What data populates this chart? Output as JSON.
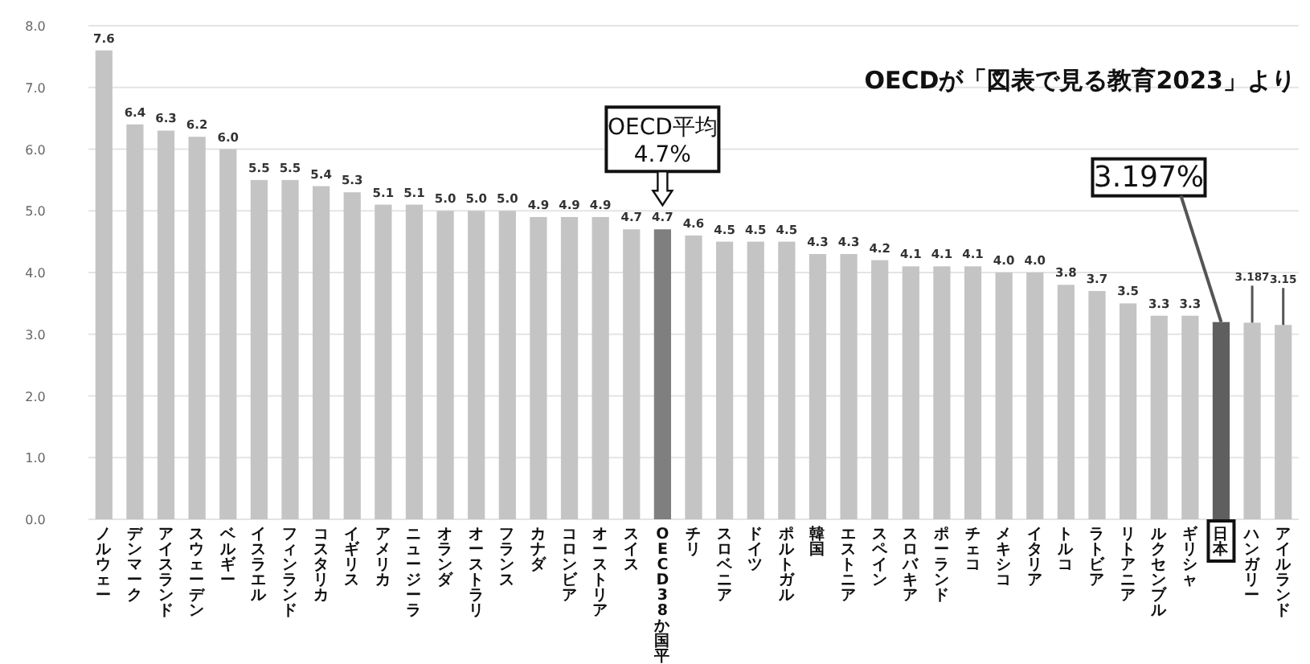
{
  "chart_data": {
    "type": "bar",
    "categories": [
      "ノルウェー",
      "デンマーク",
      "アイスランド",
      "スウェーデン",
      "ベルギー",
      "イスラエル",
      "フィンランド",
      "コスタリカ",
      "イギリス",
      "アメリカ",
      "ニュージーラ",
      "オランダ",
      "オーストラリ",
      "フランス",
      "カナダ",
      "コロンビア",
      "オーストリア",
      "スイス",
      "OECD38か国平",
      "チリ",
      "スロベニア",
      "ドイツ",
      "ポルトガル",
      "韓国",
      "エストニア",
      "スペイン",
      "スロバキア",
      "ポーランド",
      "チェコ",
      "メキシコ",
      "イタリア",
      "トルコ",
      "ラトビア",
      "リトアニア",
      "ルクセンブル",
      "ギリシャ",
      "日本",
      "ハンガリー",
      "アイルランド"
    ],
    "values": [
      7.6,
      6.4,
      6.3,
      6.2,
      6.0,
      5.5,
      5.5,
      5.4,
      5.3,
      5.1,
      5.1,
      5.0,
      5.0,
      5.0,
      4.9,
      4.9,
      4.9,
      4.7,
      4.7,
      4.6,
      4.5,
      4.5,
      4.5,
      4.3,
      4.3,
      4.2,
      4.1,
      4.1,
      4.1,
      4.0,
      4.0,
      3.8,
      3.7,
      3.5,
      3.3,
      3.3,
      3.197,
      3.187,
      3.15
    ],
    "colors": [
      "#c4c4c4",
      "#c4c4c4",
      "#c4c4c4",
      "#c4c4c4",
      "#c4c4c4",
      "#c4c4c4",
      "#c4c4c4",
      "#c4c4c4",
      "#c4c4c4",
      "#c4c4c4",
      "#c4c4c4",
      "#c4c4c4",
      "#c4c4c4",
      "#c4c4c4",
      "#c4c4c4",
      "#c4c4c4",
      "#c4c4c4",
      "#c4c4c4",
      "#7f7f7f",
      "#c4c4c4",
      "#c4c4c4",
      "#c4c4c4",
      "#c4c4c4",
      "#c4c4c4",
      "#c4c4c4",
      "#c4c4c4",
      "#c4c4c4",
      "#c4c4c4",
      "#c4c4c4",
      "#c4c4c4",
      "#c4c4c4",
      "#c4c4c4",
      "#c4c4c4",
      "#c4c4c4",
      "#c4c4c4",
      "#c4c4c4",
      "#5f5f5f",
      "#c4c4c4",
      "#c4c4c4"
    ],
    "value_labels": [
      "7.6",
      "6.4",
      "6.3",
      "6.2",
      "6.0",
      "5.5",
      "5.5",
      "5.4",
      "5.3",
      "5.1",
      "5.1",
      "5.0",
      "5.0",
      "5.0",
      "4.9",
      "4.9",
      "4.9",
      "4.7",
      "4.7",
      "4.6",
      "4.5",
      "4.5",
      "4.5",
      "4.3",
      "4.3",
      "4.2",
      "4.1",
      "4.1",
      "4.1",
      "4.0",
      "4.0",
      "3.8",
      "3.7",
      "3.5",
      "3.3",
      "3.3",
      null,
      "3.187",
      "3.15"
    ],
    "ylim": [
      0,
      8
    ],
    "yticks": [
      {
        "value": 0,
        "label": "0.0"
      },
      {
        "value": 1,
        "label": "1.0"
      },
      {
        "value": 2,
        "label": "2.0"
      },
      {
        "value": 3,
        "label": "3.0"
      },
      {
        "value": 4,
        "label": "4.0"
      },
      {
        "value": 5,
        "label": "5.0"
      },
      {
        "value": 6,
        "label": "6.0"
      },
      {
        "value": 7,
        "label": "7.0"
      },
      {
        "value": 8,
        "label": "8.0"
      }
    ],
    "grid": "y",
    "annotations": [
      "OECDが「図表で見る教育2023」より",
      {
        "text": "OECD平均\n4.7%",
        "x": "OECD38か国平",
        "y": 4.7
      },
      {
        "text": "3.197%",
        "x": "日本",
        "y": 3.197
      }
    ]
  }
}
